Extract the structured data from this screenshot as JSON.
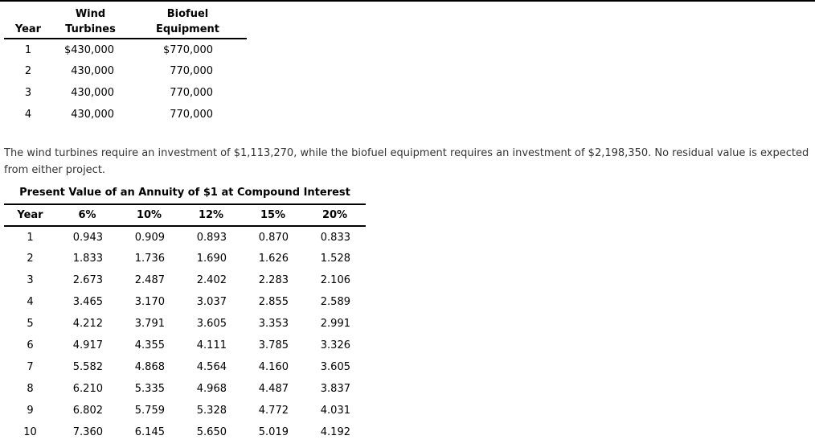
{
  "colors": {
    "rule": "#000000",
    "table_text": "#000000",
    "paragraph_text": "#333333",
    "background": "#ffffff"
  },
  "cashflow_table": {
    "header_line1": [
      "",
      "Wind",
      "Biofuel"
    ],
    "header_line2": [
      "Year",
      "Turbines",
      "Equipment"
    ],
    "rows": [
      [
        "1",
        "$430,000",
        "$770,000"
      ],
      [
        "2",
        "430,000",
        "770,000"
      ],
      [
        "3",
        "430,000",
        "770,000"
      ],
      [
        "4",
        "430,000",
        "770,000"
      ]
    ]
  },
  "paragraph": "The wind turbines require an investment of $1,113,270, while the biofuel equipment requires an investment of $2,198,350. No residual value is expected from either project.",
  "pv_table": {
    "title": "Present Value of an Annuity of $1 at Compound Interest",
    "headers": [
      "Year",
      "6%",
      "10%",
      "12%",
      "15%",
      "20%"
    ],
    "rows": [
      [
        "1",
        "0.943",
        "0.909",
        "0.893",
        "0.870",
        "0.833"
      ],
      [
        "2",
        "1.833",
        "1.736",
        "1.690",
        "1.626",
        "1.528"
      ],
      [
        "3",
        "2.673",
        "2.487",
        "2.402",
        "2.283",
        "2.106"
      ],
      [
        "4",
        "3.465",
        "3.170",
        "3.037",
        "2.855",
        "2.589"
      ],
      [
        "5",
        "4.212",
        "3.791",
        "3.605",
        "3.353",
        "2.991"
      ],
      [
        "6",
        "4.917",
        "4.355",
        "4.111",
        "3.785",
        "3.326"
      ],
      [
        "7",
        "5.582",
        "4.868",
        "4.564",
        "4.160",
        "3.605"
      ],
      [
        "8",
        "6.210",
        "5.335",
        "4.968",
        "4.487",
        "3.837"
      ],
      [
        "9",
        "6.802",
        "5.759",
        "5.328",
        "4.772",
        "4.031"
      ],
      [
        "10",
        "7.360",
        "6.145",
        "5.650",
        "5.019",
        "4.192"
      ]
    ]
  },
  "chart_data": {
    "type": "table",
    "tables": [
      {
        "name": "annual_net_cash_flows",
        "columns": [
          "Year",
          "Wind Turbines",
          "Biofuel Equipment"
        ],
        "rows": [
          [
            1,
            430000,
            770000
          ],
          [
            2,
            430000,
            770000
          ],
          [
            3,
            430000,
            770000
          ],
          [
            4,
            430000,
            770000
          ]
        ]
      },
      {
        "name": "present_value_annuity_factors",
        "title": "Present Value of an Annuity of $1 at Compound Interest",
        "columns": [
          "Year",
          "6%",
          "10%",
          "12%",
          "15%",
          "20%"
        ],
        "rows": [
          [
            1,
            0.943,
            0.909,
            0.893,
            0.87,
            0.833
          ],
          [
            2,
            1.833,
            1.736,
            1.69,
            1.626,
            1.528
          ],
          [
            3,
            2.673,
            2.487,
            2.402,
            2.283,
            2.106
          ],
          [
            4,
            3.465,
            3.17,
            3.037,
            2.855,
            2.589
          ],
          [
            5,
            4.212,
            3.791,
            3.605,
            3.353,
            2.991
          ],
          [
            6,
            4.917,
            4.355,
            4.111,
            3.785,
            3.326
          ],
          [
            7,
            5.582,
            4.868,
            4.564,
            4.16,
            3.605
          ],
          [
            8,
            6.21,
            5.335,
            4.968,
            4.487,
            3.837
          ],
          [
            9,
            6.802,
            5.759,
            5.328,
            4.772,
            4.031
          ],
          [
            10,
            7.36,
            6.145,
            5.65,
            5.019,
            4.192
          ]
        ]
      }
    ]
  }
}
